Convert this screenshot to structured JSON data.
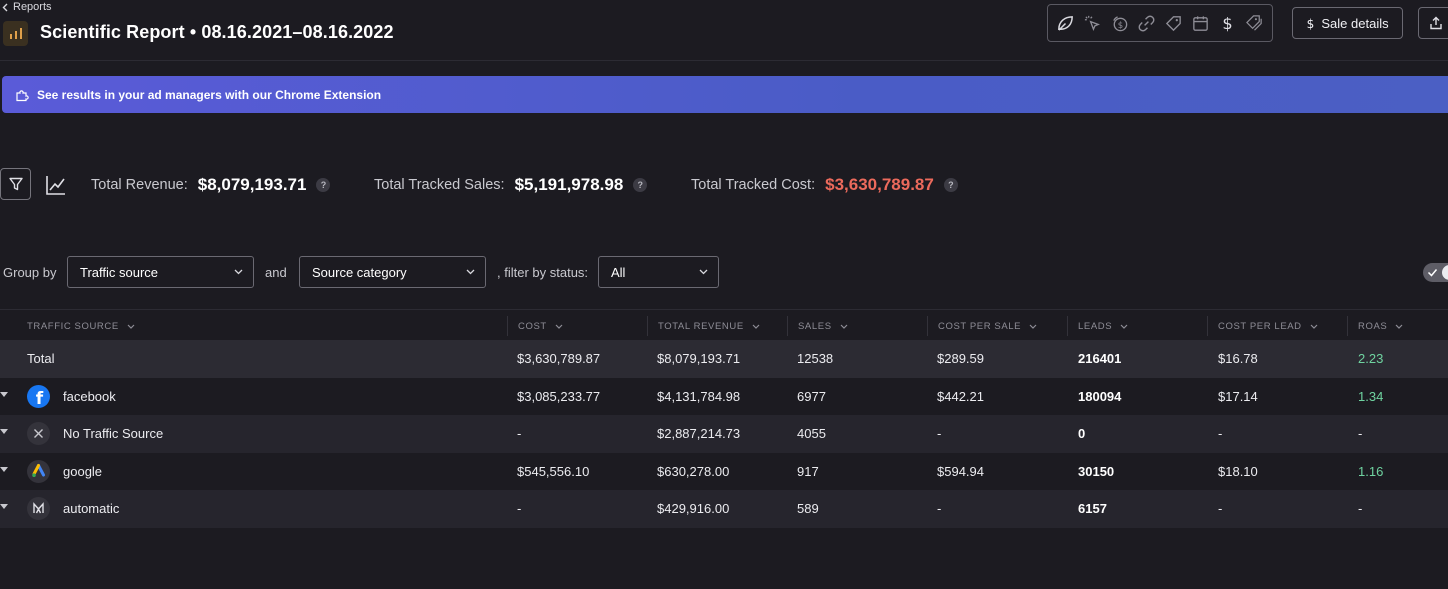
{
  "header": {
    "back_label": "Reports",
    "title": "Scientific Report • 08.16.2021–08.16.2022",
    "toolbar_icons": [
      "leaf-icon",
      "click-icon",
      "coin-icon",
      "link-icon",
      "tag-icon",
      "calendar-icon",
      "dollar-icon",
      "tags-icon"
    ],
    "sale_details_label": "Sale details"
  },
  "banner": {
    "text": "See results in your ad managers with our Chrome Extension"
  },
  "kpis": {
    "revenue_label": "Total Revenue:",
    "revenue_value": "$8,079,193.71",
    "sales_label": "Total Tracked Sales:",
    "sales_value": "$5,191,978.98",
    "cost_label": "Total Tracked Cost:",
    "cost_value": "$3,630,789.87",
    "help_symbol": "?"
  },
  "grouping": {
    "group_by_label": "Group by",
    "group_by_value": "Traffic source",
    "and_label": "and",
    "second_value": "Source category",
    "filter_label": ", filter by status:",
    "status_value": "All"
  },
  "table": {
    "columns": [
      "TRAFFIC SOURCE",
      "COST",
      "TOTAL REVENUE",
      "SALES",
      "COST PER SALE",
      "LEADS",
      "COST PER LEAD",
      "ROAS"
    ],
    "total": {
      "label": "Total",
      "cost": "$3,630,789.87",
      "revenue": "$8,079,193.71",
      "sales": "12538",
      "cost_per_sale": "$289.59",
      "leads": "216401",
      "cost_per_lead": "$16.78",
      "roas": "2.23"
    },
    "rows": [
      {
        "source": "facebook",
        "icon": "facebook-icon",
        "cost": "$3,085,233.77",
        "revenue": "$4,131,784.98",
        "sales": "6977",
        "cost_per_sale": "$442.21",
        "leads": "180094",
        "cost_per_lead": "$17.14",
        "roas": "1.34"
      },
      {
        "source": "No Traffic Source",
        "icon": "close-icon",
        "cost": "-",
        "revenue": "$2,887,214.73",
        "sales": "4055",
        "cost_per_sale": "-",
        "leads": "0",
        "cost_per_lead": "-",
        "roas": "-"
      },
      {
        "source": "google",
        "icon": "google-ads-icon",
        "cost": "$545,556.10",
        "revenue": "$630,278.00",
        "sales": "917",
        "cost_per_sale": "$594.94",
        "leads": "30150",
        "cost_per_lead": "$18.10",
        "roas": "1.16"
      },
      {
        "source": "automatic",
        "icon": "automatic-icon",
        "cost": "-",
        "revenue": "$429,916.00",
        "sales": "589",
        "cost_per_sale": "-",
        "leads": "6157",
        "cost_per_lead": "-",
        "roas": "-"
      }
    ]
  },
  "colors": {
    "background": "#1c1b21",
    "banner": "#5059cf",
    "cost_accent": "#ec6a5c",
    "roas_accent": "#6fd3a0"
  }
}
